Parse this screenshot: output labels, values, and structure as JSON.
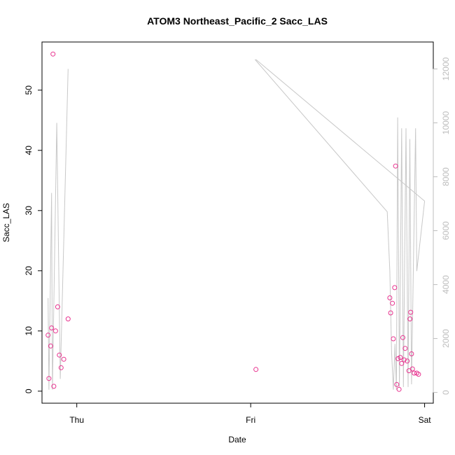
{
  "chart_data": {
    "type": "scatter",
    "title": "ATOM3 Northeast_Pacific_2 Sacc_LAS",
    "xlabel": "Date",
    "ylabel": "Sacc_LAS",
    "x_ticks": [
      {
        "label": "Thu",
        "day": 0
      },
      {
        "label": "Fri",
        "day": 1
      },
      {
        "label": "Sat",
        "day": 2
      }
    ],
    "xlim": [
      -0.2,
      2.05
    ],
    "ylim": [
      -2,
      58
    ],
    "y_ticks": [
      0,
      10,
      20,
      30,
      40,
      50
    ],
    "y2lim": [
      -400,
      13000
    ],
    "y2_ticks": [
      0,
      2000,
      4000,
      6000,
      8000,
      10000,
      12000
    ],
    "colors": {
      "points": "#e8338f",
      "line": "#c8c8c8",
      "axis": "#000000",
      "right_axis": "#bdbdbd"
    },
    "series": [
      {
        "type": "points",
        "axis": "left",
        "points": [
          {
            "x": -0.165,
            "y": 9.3
          },
          {
            "x": -0.16,
            "y": 2.1
          },
          {
            "x": -0.15,
            "y": 7.5
          },
          {
            "x": -0.145,
            "y": 10.5
          },
          {
            "x": -0.137,
            "y": 56.0
          },
          {
            "x": -0.132,
            "y": 0.8
          },
          {
            "x": -0.122,
            "y": 10.0
          },
          {
            "x": -0.11,
            "y": 14.0
          },
          {
            "x": -0.1,
            "y": 6.0
          },
          {
            "x": -0.09,
            "y": 3.9
          },
          {
            "x": -0.075,
            "y": 5.3
          },
          {
            "x": -0.05,
            "y": 12.0
          },
          {
            "x": 1.03,
            "y": 3.6
          },
          {
            "x": 1.8,
            "y": 15.5
          },
          {
            "x": 1.805,
            "y": 13.0
          },
          {
            "x": 1.815,
            "y": 14.6
          },
          {
            "x": 1.82,
            "y": 8.7
          },
          {
            "x": 1.828,
            "y": 17.2
          },
          {
            "x": 1.833,
            "y": 37.4
          },
          {
            "x": 1.84,
            "y": 1.1
          },
          {
            "x": 1.847,
            "y": 5.4
          },
          {
            "x": 1.853,
            "y": 0.3
          },
          {
            "x": 1.86,
            "y": 5.6
          },
          {
            "x": 1.868,
            "y": 4.6
          },
          {
            "x": 1.875,
            "y": 8.9
          },
          {
            "x": 1.882,
            "y": 5.2
          },
          {
            "x": 1.888,
            "y": 7.1
          },
          {
            "x": 1.9,
            "y": 5.0
          },
          {
            "x": 1.91,
            "y": 3.4
          },
          {
            "x": 1.916,
            "y": 12.0
          },
          {
            "x": 1.92,
            "y": 13.1
          },
          {
            "x": 1.925,
            "y": 6.2
          },
          {
            "x": 1.93,
            "y": 3.7
          },
          {
            "x": 1.94,
            "y": 3.0
          },
          {
            "x": 1.955,
            "y": 3.0
          },
          {
            "x": 1.965,
            "y": 2.8
          }
        ]
      },
      {
        "type": "line",
        "axis": "right",
        "points": [
          {
            "x": -0.165,
            "y": 3500
          },
          {
            "x": -0.16,
            "y": 100
          },
          {
            "x": -0.145,
            "y": 7400
          },
          {
            "x": -0.14,
            "y": 100
          },
          {
            "x": -0.115,
            "y": 10000
          },
          {
            "x": -0.095,
            "y": 500
          },
          {
            "x": -0.05,
            "y": 12000
          },
          {
            "x": null,
            "y": null
          },
          {
            "x": 1.025,
            "y": 12350
          },
          {
            "x": 1.785,
            "y": 6700
          },
          {
            "x": 1.8,
            "y": 4500
          },
          {
            "x": 1.81,
            "y": 1500
          },
          {
            "x": 1.82,
            "y": 100
          },
          {
            "x": 1.83,
            "y": 1800
          },
          {
            "x": 1.838,
            "y": 100
          },
          {
            "x": 1.845,
            "y": 10200
          },
          {
            "x": 1.855,
            "y": 200
          },
          {
            "x": 1.868,
            "y": 9800
          },
          {
            "x": 1.878,
            "y": 200
          },
          {
            "x": 1.893,
            "y": 9800
          },
          {
            "x": 1.905,
            "y": 200
          },
          {
            "x": 1.915,
            "y": 9400
          },
          {
            "x": 1.925,
            "y": 300
          },
          {
            "x": 1.948,
            "y": 9800
          },
          {
            "x": 1.955,
            "y": 4500
          },
          {
            "x": 2.0,
            "y": 7100
          }
        ]
      },
      {
        "type": "line",
        "axis": "right",
        "points": [
          {
            "x": 1.03,
            "y": 12350
          },
          {
            "x": 2.0,
            "y": 7100
          }
        ]
      }
    ]
  }
}
